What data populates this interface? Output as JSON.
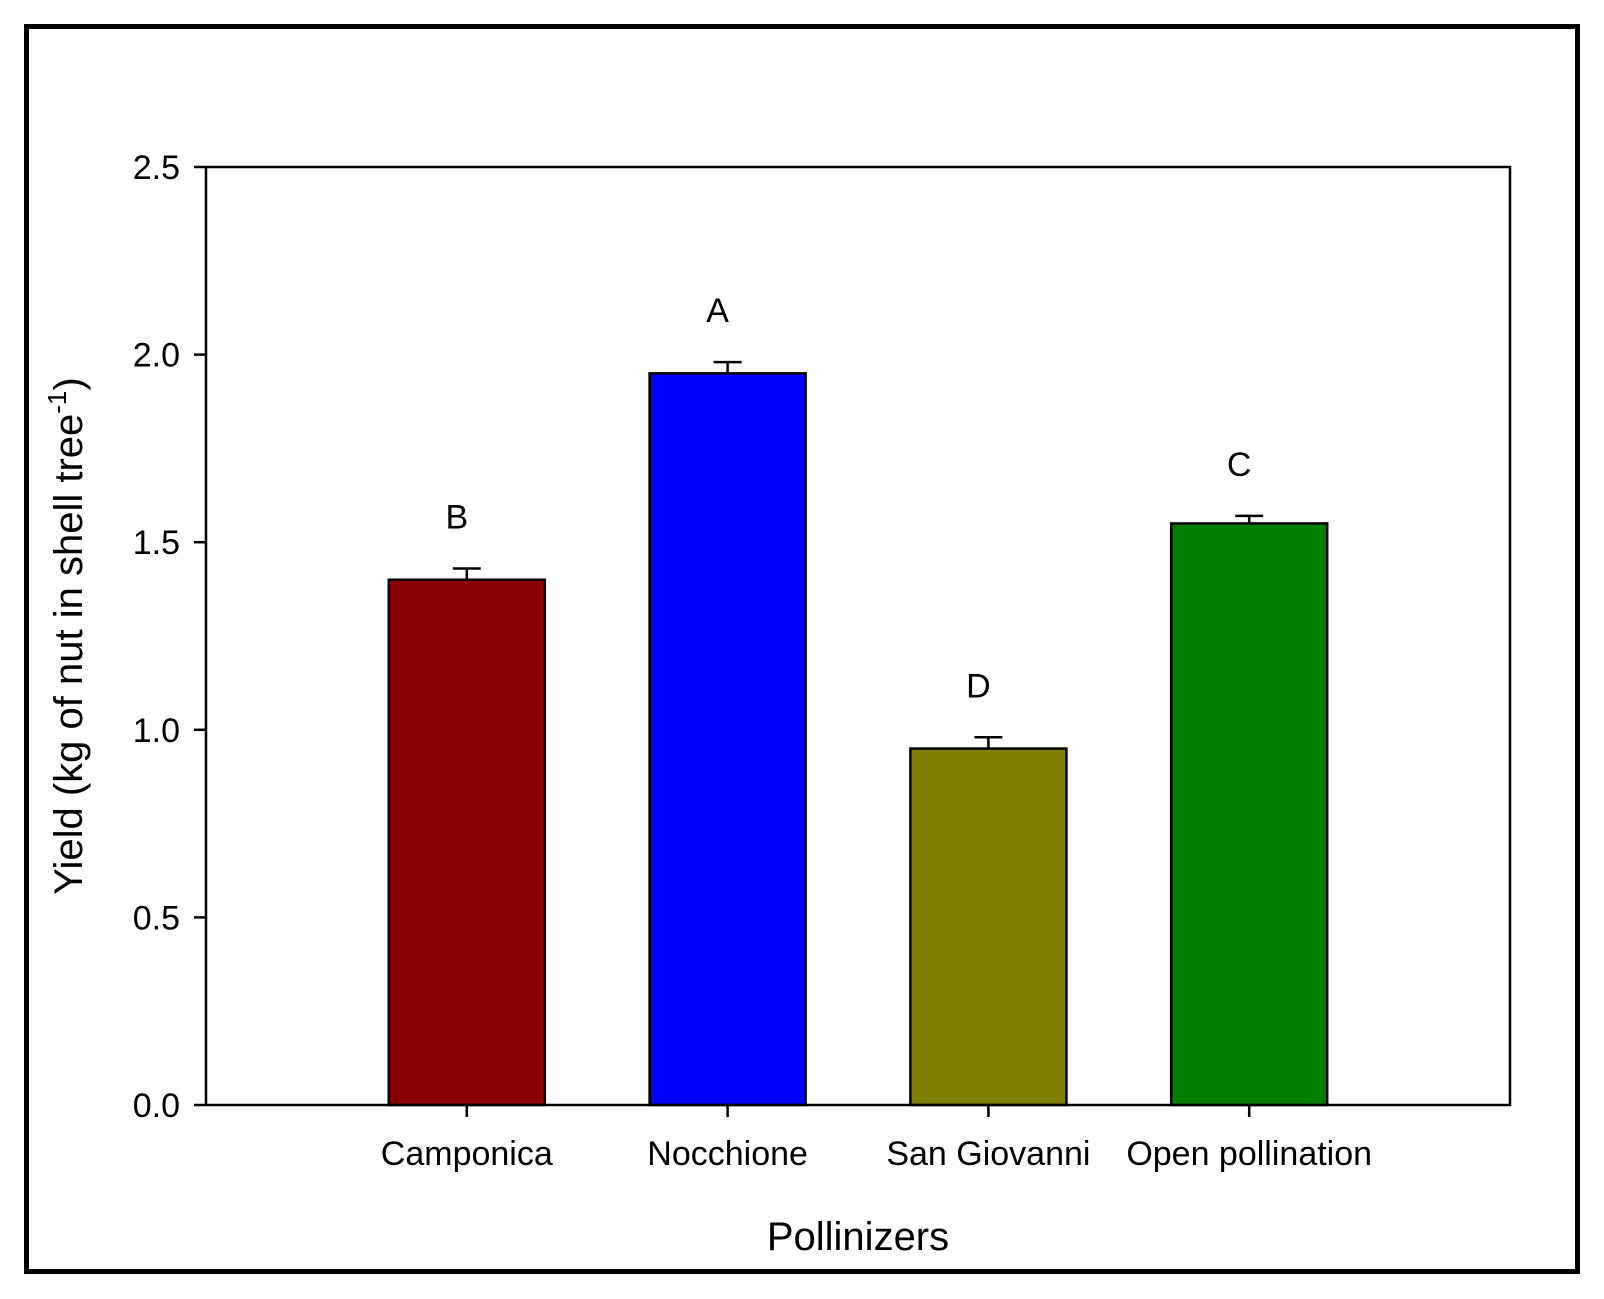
{
  "chart_data": {
    "type": "bar",
    "categories": [
      "Camponica",
      "Nocchione",
      "San Giovanni",
      "Open pollination"
    ],
    "series": [
      {
        "values": [
          1.4,
          1.95,
          0.95,
          1.55
        ],
        "errors": [
          0.03,
          0.03,
          0.03,
          0.02
        ],
        "significance": [
          "B",
          "A",
          "D",
          "C"
        ],
        "colors": [
          "#8b0000",
          "#0000ff",
          "#808000",
          "#007f00"
        ]
      }
    ],
    "xlabel": "Pollinizers",
    "ylabel": "Yield (kg of nut in shell tree",
    "ylabel_superscript": "-1",
    "ylabel_close": ")",
    "ylim": [
      0,
      2.5
    ],
    "yticks": [
      "0.0",
      "0.5",
      "1.0",
      "1.5",
      "2.0",
      "2.5"
    ],
    "grid": false,
    "legend": "none"
  }
}
